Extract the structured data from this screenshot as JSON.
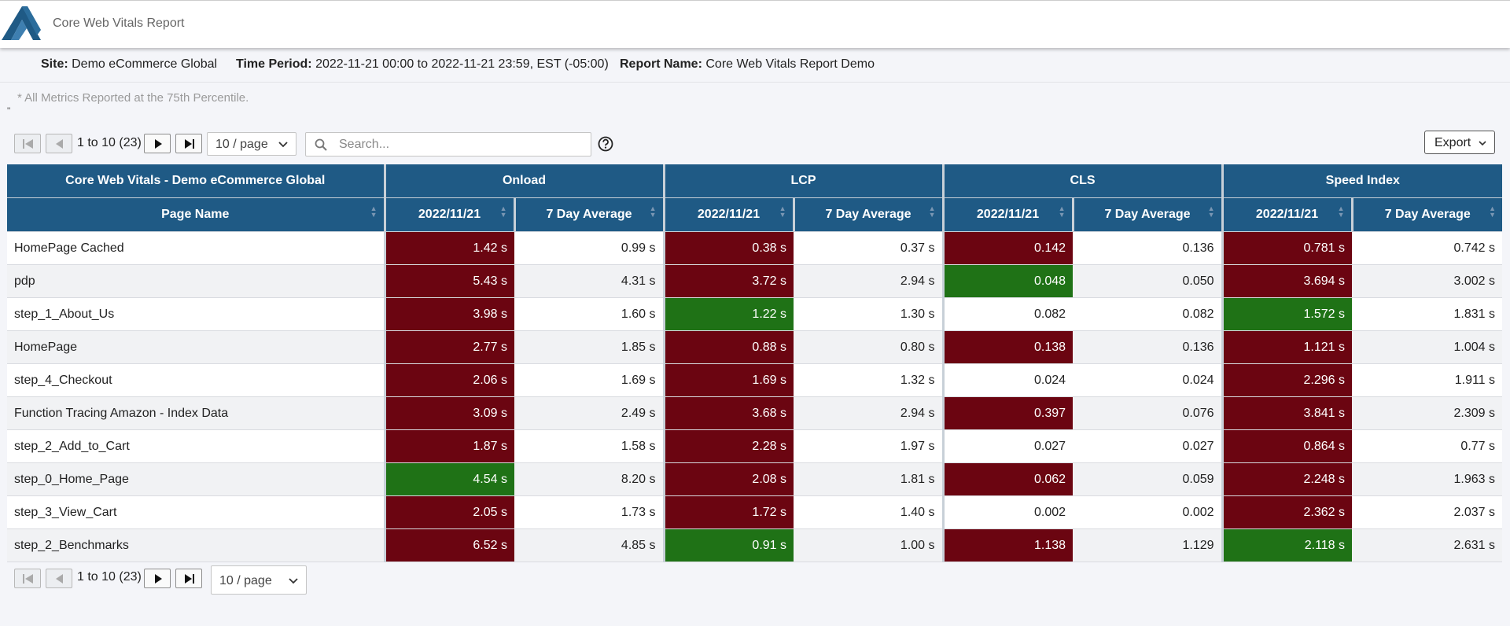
{
  "app": {
    "title": "Core Web Vitals Report"
  },
  "meta": {
    "site_label": "Site:",
    "site_value": "Demo eCommerce Global",
    "period_label": "Time Period:",
    "period_value": "2022-11-21 00:00 to 2022-11-21 23:59, EST (-05:00)",
    "report_label": "Report Name:",
    "report_value": "Core Web Vitals Report Demo"
  },
  "note": "* All Metrics Reported at the 75th Percentile.",
  "stray_mark": "\"",
  "pagination": {
    "range": "1 to 10 (23)",
    "page_size": "10 / page"
  },
  "search": {
    "placeholder": "Search..."
  },
  "export_label": "Export",
  "colors": {
    "header": "#1f5a85",
    "bad": "#6b0511",
    "good": "#1f7216"
  },
  "table": {
    "group_headers": [
      "Core Web Vitals - Demo eCommerce Global",
      "Onload",
      "LCP",
      "CLS",
      "Speed Index"
    ],
    "column_headers": [
      "Page Name",
      "2022/11/21",
      "7 Day Average",
      "2022/11/21",
      "7 Day Average",
      "2022/11/21",
      "7 Day Average",
      "2022/11/21",
      "7 Day Average"
    ],
    "rows": [
      {
        "name": "HomePage Cached",
        "cells": [
          [
            "1.42 s",
            "bad"
          ],
          [
            "0.99 s",
            ""
          ],
          [
            "0.38 s",
            "bad"
          ],
          [
            "0.37 s",
            ""
          ],
          [
            "0.142",
            "bad"
          ],
          [
            "0.136",
            ""
          ],
          [
            "0.781 s",
            "bad"
          ],
          [
            "0.742 s",
            ""
          ]
        ]
      },
      {
        "name": "pdp",
        "cells": [
          [
            "5.43 s",
            "bad"
          ],
          [
            "4.31 s",
            ""
          ],
          [
            "3.72 s",
            "bad"
          ],
          [
            "2.94 s",
            ""
          ],
          [
            "0.048",
            "good"
          ],
          [
            "0.050",
            ""
          ],
          [
            "3.694 s",
            "bad"
          ],
          [
            "3.002 s",
            ""
          ]
        ]
      },
      {
        "name": "step_1_About_Us",
        "cells": [
          [
            "3.98 s",
            "bad"
          ],
          [
            "1.60 s",
            ""
          ],
          [
            "1.22 s",
            "good"
          ],
          [
            "1.30 s",
            ""
          ],
          [
            "0.082",
            ""
          ],
          [
            "0.082",
            ""
          ],
          [
            "1.572 s",
            "good"
          ],
          [
            "1.831 s",
            ""
          ]
        ]
      },
      {
        "name": "HomePage",
        "cells": [
          [
            "2.77 s",
            "bad"
          ],
          [
            "1.85 s",
            ""
          ],
          [
            "0.88 s",
            "bad"
          ],
          [
            "0.80 s",
            ""
          ],
          [
            "0.138",
            "bad"
          ],
          [
            "0.136",
            ""
          ],
          [
            "1.121 s",
            "bad"
          ],
          [
            "1.004 s",
            ""
          ]
        ]
      },
      {
        "name": "step_4_Checkout",
        "cells": [
          [
            "2.06 s",
            "bad"
          ],
          [
            "1.69 s",
            ""
          ],
          [
            "1.69 s",
            "bad"
          ],
          [
            "1.32 s",
            ""
          ],
          [
            "0.024",
            ""
          ],
          [
            "0.024",
            ""
          ],
          [
            "2.296 s",
            "bad"
          ],
          [
            "1.911 s",
            ""
          ]
        ]
      },
      {
        "name": "Function Tracing Amazon - Index Data",
        "cells": [
          [
            "3.09 s",
            "bad"
          ],
          [
            "2.49 s",
            ""
          ],
          [
            "3.68 s",
            "bad"
          ],
          [
            "2.94 s",
            ""
          ],
          [
            "0.397",
            "bad"
          ],
          [
            "0.076",
            ""
          ],
          [
            "3.841 s",
            "bad"
          ],
          [
            "2.309 s",
            ""
          ]
        ]
      },
      {
        "name": "step_2_Add_to_Cart",
        "cells": [
          [
            "1.87 s",
            "bad"
          ],
          [
            "1.58 s",
            ""
          ],
          [
            "2.28 s",
            "bad"
          ],
          [
            "1.97 s",
            ""
          ],
          [
            "0.027",
            ""
          ],
          [
            "0.027",
            ""
          ],
          [
            "0.864 s",
            "bad"
          ],
          [
            "0.77 s",
            ""
          ]
        ]
      },
      {
        "name": "step_0_Home_Page",
        "cells": [
          [
            "4.54 s",
            "good"
          ],
          [
            "8.20 s",
            ""
          ],
          [
            "2.08 s",
            "bad"
          ],
          [
            "1.81 s",
            ""
          ],
          [
            "0.062",
            "bad"
          ],
          [
            "0.059",
            ""
          ],
          [
            "2.248 s",
            "bad"
          ],
          [
            "1.963 s",
            ""
          ]
        ]
      },
      {
        "name": "step_3_View_Cart",
        "cells": [
          [
            "2.05 s",
            "bad"
          ],
          [
            "1.73 s",
            ""
          ],
          [
            "1.72 s",
            "bad"
          ],
          [
            "1.40 s",
            ""
          ],
          [
            "0.002",
            ""
          ],
          [
            "0.002",
            ""
          ],
          [
            "2.362 s",
            "bad"
          ],
          [
            "2.037 s",
            ""
          ]
        ]
      },
      {
        "name": "step_2_Benchmarks",
        "cells": [
          [
            "6.52 s",
            "bad"
          ],
          [
            "4.85 s",
            ""
          ],
          [
            "0.91 s",
            "good"
          ],
          [
            "1.00 s",
            ""
          ],
          [
            "1.138",
            "bad"
          ],
          [
            "1.129",
            ""
          ],
          [
            "2.118 s",
            "good"
          ],
          [
            "2.631 s",
            ""
          ]
        ]
      }
    ]
  }
}
